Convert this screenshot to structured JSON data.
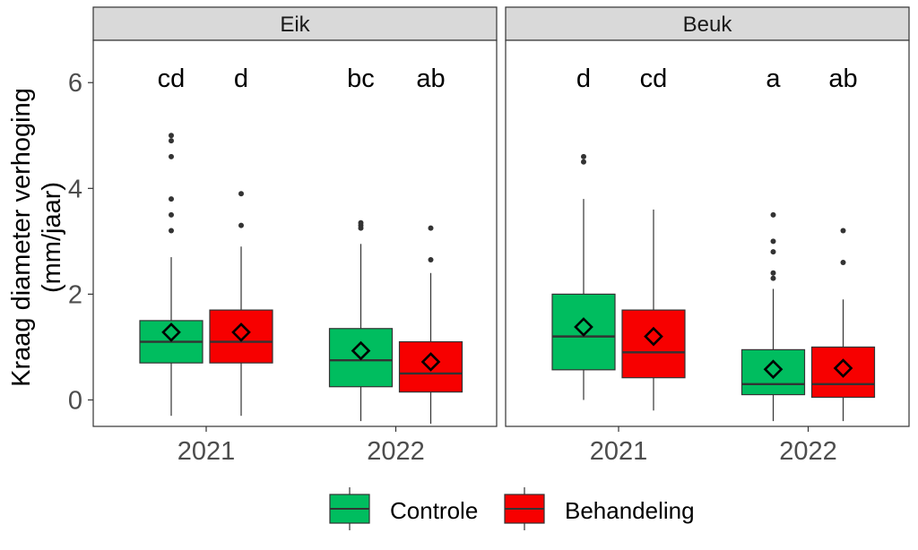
{
  "chart_data": {
    "type": "boxplot",
    "ylabel": [
      "Kraag diameter verhoging",
      "(mm/jaar)"
    ],
    "ylim": [
      -0.5,
      6.8
    ],
    "y_ticks": [
      0,
      2,
      4,
      6
    ],
    "x_categories": [
      "2021",
      "2022"
    ],
    "grid": false,
    "legend_position": "bottom",
    "legend": [
      {
        "name": "Controle",
        "color": "#00BD5F"
      },
      {
        "name": "Behandeling",
        "color": "#F70000"
      }
    ],
    "panels": [
      {
        "title": "Eik",
        "groups": [
          {
            "x": "2021",
            "series": "Controle",
            "letter": "cd",
            "whisker_low": -0.3,
            "q1": 0.7,
            "median": 1.1,
            "q3": 1.5,
            "whisker_high": 2.7,
            "mean": 1.28,
            "outliers": [
              3.2,
              3.5,
              3.8,
              4.6,
              4.9,
              5.0
            ]
          },
          {
            "x": "2021",
            "series": "Behandeling",
            "letter": "d",
            "whisker_low": -0.3,
            "q1": 0.7,
            "median": 1.1,
            "q3": 1.7,
            "whisker_high": 2.9,
            "mean": 1.28,
            "outliers": [
              3.3,
              3.9
            ]
          },
          {
            "x": "2022",
            "series": "Controle",
            "letter": "bc",
            "whisker_low": -0.4,
            "q1": 0.25,
            "median": 0.75,
            "q3": 1.35,
            "whisker_high": 2.95,
            "mean": 0.93,
            "outliers": [
              3.25,
              3.3,
              3.35
            ]
          },
          {
            "x": "2022",
            "series": "Behandeling",
            "letter": "ab",
            "whisker_low": -0.45,
            "q1": 0.15,
            "median": 0.5,
            "q3": 1.1,
            "whisker_high": 2.4,
            "mean": 0.72,
            "outliers": [
              2.65,
              3.25
            ]
          }
        ]
      },
      {
        "title": "Beuk",
        "groups": [
          {
            "x": "2021",
            "series": "Controle",
            "letter": "d",
            "whisker_low": 0.0,
            "q1": 0.57,
            "median": 1.2,
            "q3": 2.0,
            "whisker_high": 3.8,
            "mean": 1.38,
            "outliers": [
              4.5,
              4.6
            ]
          },
          {
            "x": "2021",
            "series": "Behandeling",
            "letter": "cd",
            "whisker_low": -0.2,
            "q1": 0.42,
            "median": 0.9,
            "q3": 1.7,
            "whisker_high": 3.6,
            "mean": 1.2,
            "outliers": []
          },
          {
            "x": "2022",
            "series": "Controle",
            "letter": "a",
            "whisker_low": -0.4,
            "q1": 0.1,
            "median": 0.3,
            "q3": 0.95,
            "whisker_high": 2.1,
            "mean": 0.58,
            "outliers": [
              2.3,
              2.4,
              2.8,
              3.0,
              3.5
            ]
          },
          {
            "x": "2022",
            "series": "Behandeling",
            "letter": "ab",
            "whisker_low": -0.4,
            "q1": 0.05,
            "median": 0.3,
            "q3": 1.0,
            "whisker_high": 1.9,
            "mean": 0.6,
            "outliers": [
              2.6,
              3.2
            ]
          }
        ]
      }
    ]
  }
}
